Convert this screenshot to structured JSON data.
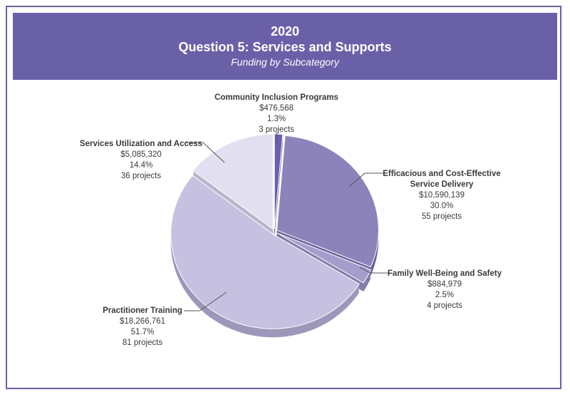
{
  "header": {
    "year": "2020",
    "title": "Question 5: Services and Supports",
    "subtitle": "Funding by Subcategory"
  },
  "chart_data": {
    "type": "pie",
    "title": "Question 5: Services and Supports",
    "subtitle": "Funding by Subcategory",
    "slices": [
      {
        "name": "Community Inclusion Programs",
        "amount": "$476,568",
        "percent": "1.3%",
        "projects": "3 projects",
        "value": 1.3,
        "color": "#6b5fb0",
        "depth": "#4f4590"
      },
      {
        "name": "Efficacious and Cost-Effective Service Delivery",
        "name_line1": "Efficacious and Cost-Effective",
        "name_line2": "Service Delivery",
        "amount": "$10,590,139",
        "percent": "30.0%",
        "projects": "55 projects",
        "value": 30.0,
        "color": "#8c83ba",
        "depth": "#6b6299"
      },
      {
        "name": "Family Well-Being and Safety",
        "amount": "$884,979",
        "percent": "2.5%",
        "projects": "4 projects",
        "value": 2.5,
        "color": "#a59dcc",
        "depth": "#847cab"
      },
      {
        "name": "Practitioner Training",
        "amount": "$18,266,761",
        "percent": "51.7%",
        "projects": "81 projects",
        "value": 51.7,
        "color": "#c6c1e0",
        "depth": "#9d98ba"
      },
      {
        "name": "Services Utilization and Access",
        "amount": "$5,085,320",
        "percent": "14.4%",
        "projects": "36 projects",
        "value": 14.4,
        "color": "#e1dff0",
        "depth": "#b9b6cc"
      }
    ]
  }
}
